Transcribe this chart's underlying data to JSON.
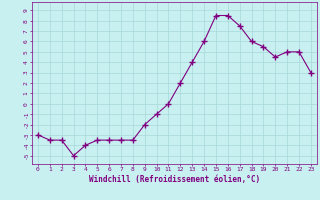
{
  "x": [
    0,
    1,
    2,
    3,
    4,
    5,
    6,
    7,
    8,
    9,
    10,
    11,
    12,
    13,
    14,
    15,
    16,
    17,
    18,
    19,
    20,
    21,
    22,
    23
  ],
  "y": [
    -3,
    -3.5,
    -3.5,
    -5,
    -4,
    -3.5,
    -3.5,
    -3.5,
    -3.5,
    -2,
    -1,
    0,
    2,
    4,
    6,
    8.5,
    8.5,
    7.5,
    6,
    5.5,
    4.5,
    5,
    5,
    3
  ],
  "xlabel": "Windchill (Refroidissement éolien,°C)",
  "xlim": [
    -0.5,
    23.5
  ],
  "ylim": [
    -5.8,
    9.8
  ],
  "yticks": [
    -5,
    -4,
    -3,
    -2,
    -1,
    0,
    1,
    2,
    3,
    4,
    5,
    6,
    7,
    8,
    9
  ],
  "xticks": [
    0,
    1,
    2,
    3,
    4,
    5,
    6,
    7,
    8,
    9,
    10,
    11,
    12,
    13,
    14,
    15,
    16,
    17,
    18,
    19,
    20,
    21,
    22,
    23
  ],
  "line_color": "#800080",
  "marker": "+",
  "marker_size": 4,
  "bg_color": "#c8f0f0",
  "grid_color": "#a8d8d8",
  "axis_color": "#800080",
  "tick_color": "#800080",
  "label_color": "#800080",
  "figsize": [
    3.2,
    2.0
  ],
  "dpi": 100
}
